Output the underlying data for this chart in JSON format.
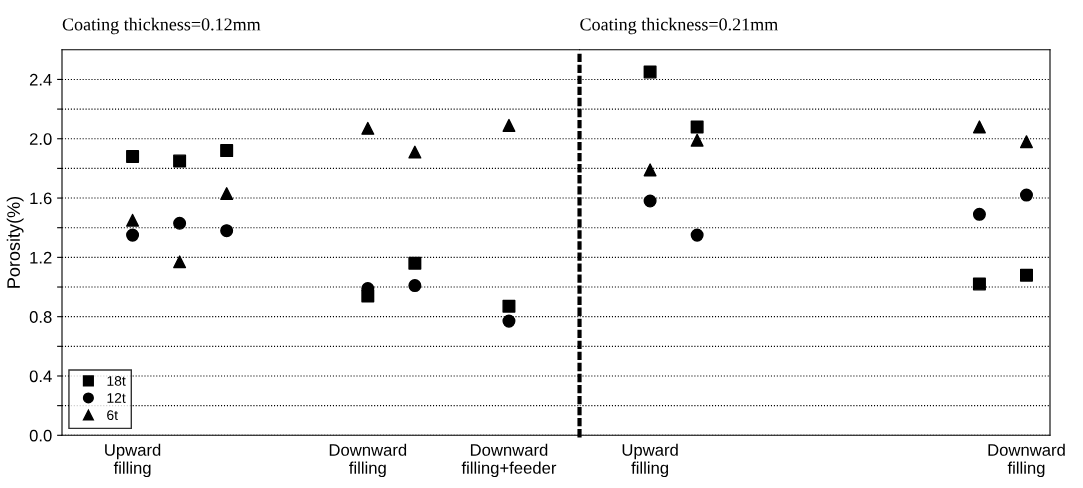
{
  "chart_data": [
    {
      "type": "scatter",
      "title": "Coating thickness=0.12mm",
      "ylabel": "Porosity(%)",
      "categories": [
        null,
        "Upward\nfilling",
        null,
        null,
        null,
        null,
        "Downward\nfilling",
        null,
        null,
        "Downward\nfilling+feeder",
        null
      ],
      "ylim": [
        0,
        2.6
      ],
      "yticks": [
        {
          "value": 0,
          "label": "0.0"
        },
        {
          "value": 0.2,
          "label": null
        },
        {
          "value": 0.4,
          "label": "0.4"
        },
        {
          "value": 0.6,
          "label": null
        },
        {
          "value": 0.8,
          "label": "0.8"
        },
        {
          "value": 1.0,
          "label": null
        },
        {
          "value": 1.2,
          "label": "1.2"
        },
        {
          "value": 1.4,
          "label": null
        },
        {
          "value": 1.6,
          "label": "1.6"
        },
        {
          "value": 1.8,
          "label": null
        },
        {
          "value": 2.0,
          "label": "2.0"
        },
        {
          "value": 2.2,
          "label": null
        },
        {
          "value": 2.4,
          "label": "2.4"
        }
      ],
      "grid": "y",
      "legend": "bottom left",
      "series": [
        {
          "name": "18t",
          "color": "#000000",
          "marker": "square",
          "values": [
            null,
            1.88,
            1.85,
            1.92,
            null,
            null,
            0.94,
            1.16,
            null,
            0.87,
            null
          ]
        },
        {
          "name": "12t",
          "color": "#000000",
          "marker": "circle",
          "values": [
            null,
            1.35,
            1.43,
            1.38,
            null,
            null,
            0.99,
            1.01,
            null,
            0.77,
            null
          ]
        },
        {
          "name": "6t",
          "color": "#000000",
          "marker": "triangle",
          "values": [
            null,
            1.45,
            1.17,
            1.63,
            null,
            null,
            2.07,
            1.91,
            null,
            2.09,
            null
          ]
        }
      ]
    },
    {
      "type": "scatter",
      "title": "Coating thickness=0.21mm",
      "categories": [
        null,
        "Upward\nfilling",
        null,
        null,
        null,
        null,
        null,
        null,
        null,
        "Downward\nfilling"
      ],
      "ylim": [
        0,
        2.6
      ],
      "yticks": [
        0,
        0.2,
        0.4,
        0.6,
        0.8,
        1.0,
        1.2,
        1.4,
        1.6,
        1.8,
        2.0,
        2.2,
        2.4
      ],
      "grid": "y",
      "tick_labels": "x",
      "series": [
        {
          "color": "#000000",
          "marker": "square",
          "values": [
            null,
            2.45,
            2.08,
            null,
            null,
            null,
            null,
            null,
            1.02,
            1.08
          ]
        },
        {
          "color": "#000000",
          "marker": "circle",
          "values": [
            null,
            1.58,
            1.35,
            null,
            null,
            null,
            null,
            null,
            1.49,
            1.62
          ]
        },
        {
          "color": "#000000",
          "marker": "triangle",
          "values": [
            null,
            1.79,
            1.99,
            null,
            null,
            null,
            null,
            null,
            2.08,
            1.98
          ]
        }
      ]
    }
  ]
}
